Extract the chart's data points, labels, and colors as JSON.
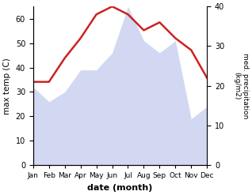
{
  "months": [
    "Jan",
    "Feb",
    "Mar",
    "Apr",
    "May",
    "Jun",
    "Jul",
    "Aug",
    "Sep",
    "Oct",
    "Nov",
    "Dec"
  ],
  "max_temp": [
    32,
    26,
    30,
    39,
    39,
    46,
    65,
    51,
    46,
    51,
    19,
    24
  ],
  "med_precip": [
    21,
    21,
    27,
    32,
    38,
    40,
    38,
    34,
    36,
    32,
    29,
    22
  ],
  "temp_color_fill": "#b0b8e8",
  "temp_fill_alpha": 0.55,
  "precip_color": "#cc2222",
  "precip_linewidth": 1.8,
  "temp_ylim": [
    0,
    65
  ],
  "precip_ylim": [
    0,
    40
  ],
  "temp_yticks": [
    0,
    10,
    20,
    30,
    40,
    50,
    60
  ],
  "precip_yticks": [
    0,
    10,
    20,
    30,
    40
  ],
  "xlabel": "date (month)",
  "ylabel_left": "max temp (C)",
  "ylabel_right": "med. precipitation\n(kg/m2)",
  "bg_color": "#ffffff",
  "figsize": [
    3.18,
    2.47
  ],
  "dpi": 100
}
